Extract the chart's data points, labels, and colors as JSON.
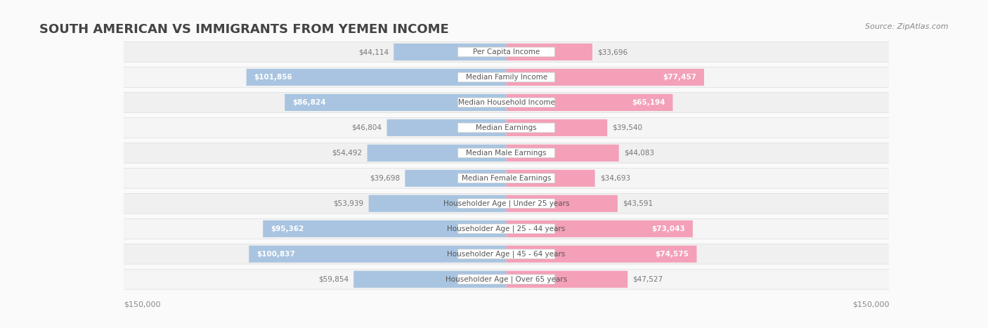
{
  "title": "SOUTH AMERICAN VS IMMIGRANTS FROM YEMEN INCOME",
  "source": "Source: ZipAtlas.com",
  "categories": [
    "Per Capita Income",
    "Median Family Income",
    "Median Household Income",
    "Median Earnings",
    "Median Male Earnings",
    "Median Female Earnings",
    "Householder Age | Under 25 years",
    "Householder Age | 25 - 44 years",
    "Householder Age | 45 - 64 years",
    "Householder Age | Over 65 years"
  ],
  "south_american": [
    44114,
    101856,
    86824,
    46804,
    54492,
    39698,
    53939,
    95362,
    100837,
    59854
  ],
  "yemen": [
    33696,
    77457,
    65194,
    39540,
    44083,
    34693,
    43591,
    73043,
    74575,
    47527
  ],
  "max_val": 150000,
  "south_american_color": "#a8c4e0",
  "yemen_color": "#f4a0b8",
  "south_american_dark_color": "#6fa8d8",
  "yemen_dark_color": "#f06090",
  "bg_color": "#f5f5f5",
  "row_bg": "#f0f0f0",
  "row_bg_alt": "#ffffff",
  "label_color": "#888888",
  "value_color_light": "#888888",
  "value_color_dark": "#ffffff",
  "center_label_bg": "#ffffff",
  "title_color": "#444444",
  "legend_sa_color": "#a8c4e0",
  "legend_yemen_color": "#f4a0b8"
}
